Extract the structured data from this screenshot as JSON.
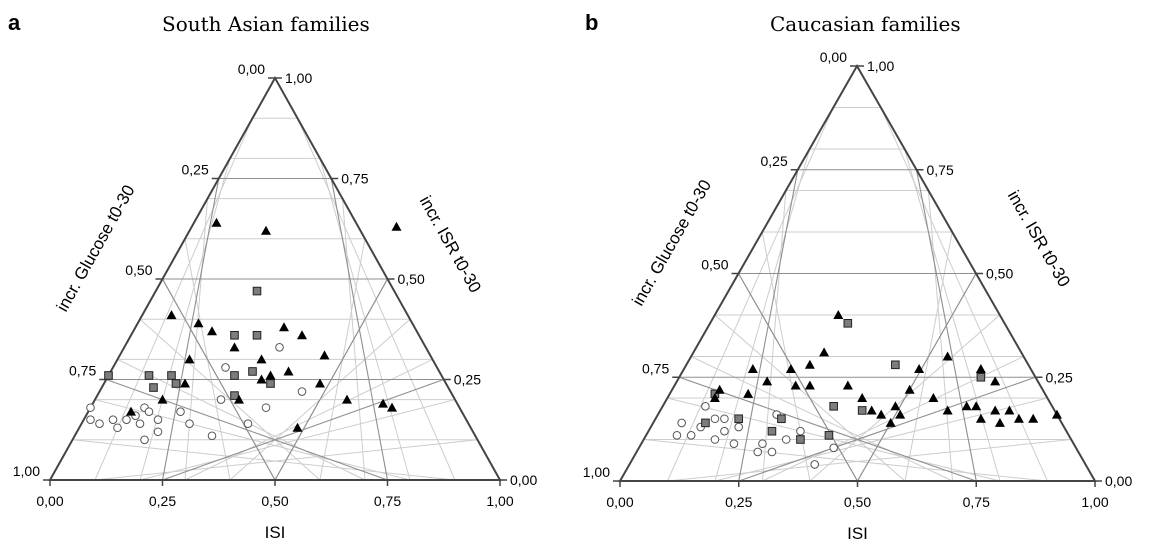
{
  "chart_data": [
    {
      "type": "scatter",
      "panel_label": "a",
      "title": "South Asian families",
      "axes": {
        "bottom": "ISI",
        "left": "incr. Glucose t0-30",
        "right": "incr. ISR t0-30"
      },
      "tick_labels": [
        "0,00",
        "0,25",
        "0,50",
        "0,75",
        "1,00"
      ],
      "grid": true,
      "marker_types": [
        "open-circle",
        "grey-square",
        "black-triangle"
      ],
      "points": [
        {
          "m": "circle",
          "isi": 0.09,
          "glu": 0.85
        },
        {
          "m": "circle",
          "isi": 0.09,
          "glu": 0.82
        },
        {
          "m": "circle",
          "isi": 0.11,
          "glu": 0.86
        },
        {
          "m": "circle",
          "isi": 0.14,
          "glu": 0.85
        },
        {
          "m": "circle",
          "isi": 0.15,
          "glu": 0.87
        },
        {
          "m": "circle",
          "isi": 0.17,
          "glu": 0.85
        },
        {
          "m": "circle",
          "isi": 0.19,
          "glu": 0.84
        },
        {
          "m": "circle",
          "isi": 0.21,
          "glu": 0.82
        },
        {
          "m": "circle",
          "isi": 0.2,
          "glu": 0.86
        },
        {
          "m": "circle",
          "isi": 0.21,
          "glu": 0.9
        },
        {
          "m": "circle",
          "isi": 0.22,
          "glu": 0.83
        },
        {
          "m": "circle",
          "isi": 0.24,
          "glu": 0.88
        },
        {
          "m": "circle",
          "isi": 0.24,
          "glu": 0.85
        },
        {
          "m": "circle",
          "isi": 0.31,
          "glu": 0.86
        },
        {
          "m": "circle",
          "isi": 0.29,
          "glu": 0.83
        },
        {
          "m": "circle",
          "isi": 0.36,
          "glu": 0.89
        },
        {
          "m": "circle",
          "isi": 0.38,
          "glu": 0.8
        },
        {
          "m": "circle",
          "isi": 0.39,
          "glu": 0.72
        },
        {
          "m": "circle",
          "isi": 0.44,
          "glu": 0.86
        },
        {
          "m": "circle",
          "isi": 0.48,
          "glu": 0.82
        },
        {
          "m": "circle",
          "isi": 0.56,
          "glu": 0.78
        },
        {
          "m": "circle",
          "isi": 0.51,
          "glu": 0.67
        },
        {
          "m": "square",
          "isi": 0.13,
          "glu": 0.74
        },
        {
          "m": "square",
          "isi": 0.22,
          "glu": 0.74
        },
        {
          "m": "square",
          "isi": 0.23,
          "glu": 0.77
        },
        {
          "m": "square",
          "isi": 0.27,
          "glu": 0.74
        },
        {
          "m": "square",
          "isi": 0.28,
          "glu": 0.76
        },
        {
          "m": "square",
          "isi": 0.41,
          "glu": 0.74
        },
        {
          "m": "square",
          "isi": 0.45,
          "glu": 0.73
        },
        {
          "m": "square",
          "isi": 0.41,
          "glu": 0.79
        },
        {
          "m": "square",
          "isi": 0.41,
          "glu": 0.64
        },
        {
          "m": "square",
          "isi": 0.46,
          "glu": 0.64
        },
        {
          "m": "square",
          "isi": 0.46,
          "glu": 0.53
        },
        {
          "m": "square",
          "isi": 0.49,
          "glu": 0.76
        },
        {
          "m": "triangle",
          "isi": 0.37,
          "glu": 0.36
        },
        {
          "m": "triangle",
          "isi": 0.48,
          "glu": 0.38
        },
        {
          "m": "triangle",
          "isi": 0.27,
          "glu": 0.59
        },
        {
          "m": "triangle",
          "isi": 0.33,
          "glu": 0.61
        },
        {
          "m": "triangle",
          "isi": 0.36,
          "glu": 0.63
        },
        {
          "m": "triangle",
          "isi": 0.41,
          "glu": 0.67
        },
        {
          "m": "triangle",
          "isi": 0.47,
          "glu": 0.7
        },
        {
          "m": "triangle",
          "isi": 0.47,
          "glu": 0.75
        },
        {
          "m": "triangle",
          "isi": 0.49,
          "glu": 0.74
        },
        {
          "m": "triangle",
          "isi": 0.53,
          "glu": 0.73
        },
        {
          "m": "triangle",
          "isi": 0.31,
          "glu": 0.7
        },
        {
          "m": "triangle",
          "isi": 0.3,
          "glu": 0.76
        },
        {
          "m": "triangle",
          "isi": 0.25,
          "glu": 0.8
        },
        {
          "m": "triangle",
          "isi": 0.42,
          "glu": 0.8
        },
        {
          "m": "triangle",
          "isi": 0.52,
          "glu": 0.62
        },
        {
          "m": "triangle",
          "isi": 0.56,
          "glu": 0.64
        },
        {
          "m": "triangle",
          "isi": 0.61,
          "glu": 0.69
        },
        {
          "m": "triangle",
          "isi": 0.6,
          "glu": 0.76
        },
        {
          "m": "triangle",
          "isi": 0.66,
          "glu": 0.8
        },
        {
          "m": "triangle",
          "isi": 0.74,
          "glu": 0.81
        },
        {
          "m": "triangle",
          "isi": 0.76,
          "glu": 0.82
        },
        {
          "m": "triangle",
          "isi": 0.55,
          "glu": 0.87
        },
        {
          "m": "triangle",
          "isi": 0.77,
          "glu": 0.37
        },
        {
          "m": "triangle",
          "isi": 0.18,
          "glu": 0.83
        }
      ]
    },
    {
      "type": "scatter",
      "panel_label": "b",
      "title": "Caucasian families",
      "axes": {
        "bottom": "ISI",
        "left": "incr. Glucose t0-30",
        "right": "incr. ISR t0-30"
      },
      "tick_labels": [
        "0,00",
        "0,25",
        "0,50",
        "0,75",
        "1,00"
      ],
      "grid": true,
      "marker_types": [
        "open-circle",
        "grey-square",
        "black-triangle"
      ],
      "points": [
        {
          "m": "circle",
          "isi": 0.12,
          "glu": 0.89
        },
        {
          "m": "circle",
          "isi": 0.13,
          "glu": 0.86
        },
        {
          "m": "circle",
          "isi": 0.15,
          "glu": 0.89
        },
        {
          "m": "circle",
          "isi": 0.17,
          "glu": 0.87
        },
        {
          "m": "circle",
          "isi": 0.2,
          "glu": 0.9
        },
        {
          "m": "circle",
          "isi": 0.22,
          "glu": 0.88
        },
        {
          "m": "circle",
          "isi": 0.2,
          "glu": 0.85
        },
        {
          "m": "circle",
          "isi": 0.25,
          "glu": 0.87
        },
        {
          "m": "circle",
          "isi": 0.24,
          "glu": 0.91
        },
        {
          "m": "circle",
          "isi": 0.29,
          "glu": 0.93
        },
        {
          "m": "circle",
          "isi": 0.3,
          "glu": 0.91
        },
        {
          "m": "circle",
          "isi": 0.32,
          "glu": 0.93
        },
        {
          "m": "circle",
          "isi": 0.35,
          "glu": 0.9
        },
        {
          "m": "circle",
          "isi": 0.38,
          "glu": 0.88
        },
        {
          "m": "circle",
          "isi": 0.41,
          "glu": 0.96
        },
        {
          "m": "circle",
          "isi": 0.45,
          "glu": 0.92
        },
        {
          "m": "circle",
          "isi": 0.33,
          "glu": 0.84
        },
        {
          "m": "circle",
          "isi": 0.18,
          "glu": 0.82
        },
        {
          "m": "circle",
          "isi": 0.22,
          "glu": 0.85
        },
        {
          "m": "square",
          "isi": 0.2,
          "glu": 0.79
        },
        {
          "m": "square",
          "isi": 0.18,
          "glu": 0.86
        },
        {
          "m": "square",
          "isi": 0.25,
          "glu": 0.85
        },
        {
          "m": "square",
          "isi": 0.34,
          "glu": 0.85
        },
        {
          "m": "square",
          "isi": 0.38,
          "glu": 0.9
        },
        {
          "m": "square",
          "isi": 0.44,
          "glu": 0.89
        },
        {
          "m": "square",
          "isi": 0.45,
          "glu": 0.82
        },
        {
          "m": "square",
          "isi": 0.51,
          "glu": 0.83
        },
        {
          "m": "square",
          "isi": 0.58,
          "glu": 0.72
        },
        {
          "m": "square",
          "isi": 0.76,
          "glu": 0.75
        },
        {
          "m": "square",
          "isi": 0.48,
          "glu": 0.62
        },
        {
          "m": "square",
          "isi": 0.32,
          "glu": 0.88
        },
        {
          "m": "triangle",
          "isi": 0.46,
          "glu": 0.6
        },
        {
          "m": "triangle",
          "isi": 0.28,
          "glu": 0.73
        },
        {
          "m": "triangle",
          "isi": 0.21,
          "glu": 0.78
        },
        {
          "m": "triangle",
          "isi": 0.2,
          "glu": 0.8
        },
        {
          "m": "triangle",
          "isi": 0.27,
          "glu": 0.79
        },
        {
          "m": "triangle",
          "isi": 0.31,
          "glu": 0.76
        },
        {
          "m": "triangle",
          "isi": 0.37,
          "glu": 0.77
        },
        {
          "m": "triangle",
          "isi": 0.36,
          "glu": 0.73
        },
        {
          "m": "triangle",
          "isi": 0.4,
          "glu": 0.77
        },
        {
          "m": "triangle",
          "isi": 0.4,
          "glu": 0.72
        },
        {
          "m": "triangle",
          "isi": 0.43,
          "glu": 0.69
        },
        {
          "m": "triangle",
          "isi": 0.48,
          "glu": 0.77
        },
        {
          "m": "triangle",
          "isi": 0.51,
          "glu": 0.8
        },
        {
          "m": "triangle",
          "isi": 0.53,
          "glu": 0.83
        },
        {
          "m": "triangle",
          "isi": 0.55,
          "glu": 0.84
        },
        {
          "m": "triangle",
          "isi": 0.57,
          "glu": 0.86
        },
        {
          "m": "triangle",
          "isi": 0.59,
          "glu": 0.84
        },
        {
          "m": "triangle",
          "isi": 0.58,
          "glu": 0.82
        },
        {
          "m": "triangle",
          "isi": 0.61,
          "glu": 0.78
        },
        {
          "m": "triangle",
          "isi": 0.63,
          "glu": 0.73
        },
        {
          "m": "triangle",
          "isi": 0.69,
          "glu": 0.7
        },
        {
          "m": "triangle",
          "isi": 0.66,
          "glu": 0.8
        },
        {
          "m": "triangle",
          "isi": 0.69,
          "glu": 0.83
        },
        {
          "m": "triangle",
          "isi": 0.73,
          "glu": 0.82
        },
        {
          "m": "triangle",
          "isi": 0.75,
          "glu": 0.82
        },
        {
          "m": "triangle",
          "isi": 0.76,
          "glu": 0.85
        },
        {
          "m": "triangle",
          "isi": 0.79,
          "glu": 0.83
        },
        {
          "m": "triangle",
          "isi": 0.8,
          "glu": 0.86
        },
        {
          "m": "triangle",
          "isi": 0.82,
          "glu": 0.83
        },
        {
          "m": "triangle",
          "isi": 0.84,
          "glu": 0.85
        },
        {
          "m": "triangle",
          "isi": 0.87,
          "glu": 0.85
        },
        {
          "m": "triangle",
          "isi": 0.92,
          "glu": 0.84
        },
        {
          "m": "triangle",
          "isi": 0.79,
          "glu": 0.76
        },
        {
          "m": "triangle",
          "isi": 0.76,
          "glu": 0.73
        }
      ]
    }
  ]
}
